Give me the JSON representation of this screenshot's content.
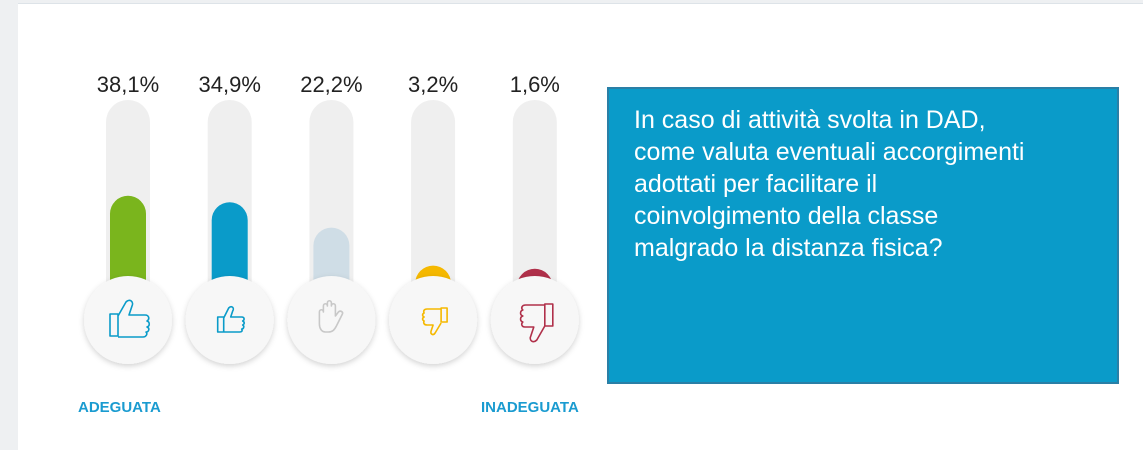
{
  "chart_data": {
    "type": "bar",
    "categories": [
      null,
      null,
      null,
      null,
      null
    ],
    "values": [
      38.1,
      34.9,
      22.2,
      3.2,
      1.6
    ],
    "value_labels": [
      "38,1%",
      "34,9%",
      "22,2%",
      "3,2%",
      "1,6%"
    ],
    "colors": [
      "#7ab51d",
      "#0a9bc9",
      "#cfdde6",
      "#f5b800",
      "#b0304a"
    ],
    "left_label": "ADEGUATA",
    "right_label": "INADEGUATA",
    "question_lines": [
      "In caso di attività svolta in DAD,",
      "come valuta eventuali accorgimenti",
      "adottati per facilitare il",
      "coinvolgimento della classe",
      "malgrado la distanza fisica?"
    ]
  }
}
